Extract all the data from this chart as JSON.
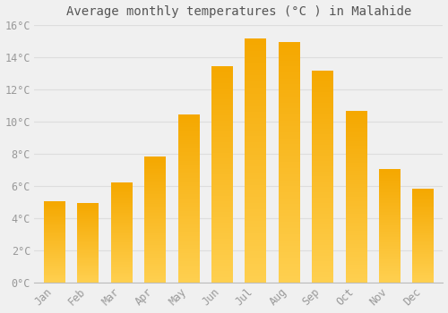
{
  "title": "Average monthly temperatures (°C ) in Malahide",
  "months": [
    "Jan",
    "Feb",
    "Mar",
    "Apr",
    "May",
    "Jun",
    "Jul",
    "Aug",
    "Sep",
    "Oct",
    "Nov",
    "Dec"
  ],
  "values": [
    5.0,
    4.9,
    6.2,
    7.8,
    10.4,
    13.4,
    15.1,
    14.9,
    13.1,
    10.6,
    7.0,
    5.8
  ],
  "bar_color_top": "#F5A800",
  "bar_color_bottom": "#FFD050",
  "background_color": "#F0F0F0",
  "grid_color": "#DDDDDD",
  "ylim": [
    0,
    16
  ],
  "yticks": [
    0,
    2,
    4,
    6,
    8,
    10,
    12,
    14,
    16
  ],
  "ytick_labels": [
    "0°C",
    "2°C",
    "4°C",
    "6°C",
    "8°C",
    "10°C",
    "12°C",
    "14°C",
    "16°C"
  ],
  "title_fontsize": 10,
  "tick_fontsize": 8.5,
  "font_color": "#999999",
  "title_color": "#555555"
}
